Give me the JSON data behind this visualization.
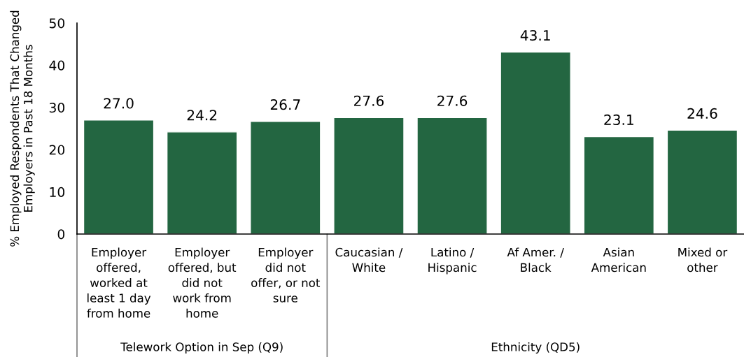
{
  "chart_data": {
    "type": "bar",
    "categories": [
      "Employer\noffered,\nworked at\nleast 1 day\nfrom home",
      "Employer\noffered, but\ndid not\nwork from\nhome",
      "Employer\ndid not\noffer, or not\nsure",
      "Caucasian /\nWhite",
      "Latino /\nHispanic",
      "Af Amer. /\nBlack",
      "Asian\nAmerican",
      "Mixed or\nother"
    ],
    "values": [
      27.0,
      24.2,
      26.7,
      27.6,
      27.6,
      43.1,
      23.1,
      24.6
    ],
    "value_labels": [
      "27.0",
      "24.2",
      "26.7",
      "27.6",
      "27.6",
      "43.1",
      "23.1",
      "24.6"
    ],
    "color": "#236641",
    "ylabel": "% Employed Respondents That Changed\nEmployers in Past 18 Months",
    "ylim": [
      0,
      50
    ],
    "yticks": [
      0,
      10,
      20,
      30,
      40,
      50
    ],
    "annotations": [
      "Telework Option in Sep (Q9)",
      "Ethnicity (QD5)"
    ],
    "grid": false,
    "legend": false
  }
}
